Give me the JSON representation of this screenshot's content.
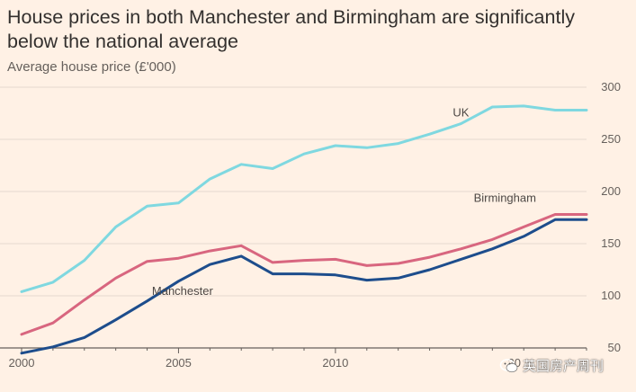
{
  "chart_data": {
    "type": "line",
    "title": "House prices in both Manchester and Birmingham are significantly below the national average",
    "subtitle": "Average house price (£'000)",
    "xlabel": "",
    "ylabel": "Average house price (£'000)",
    "xlim": [
      2000,
      2018
    ],
    "ylim": [
      50,
      300
    ],
    "x_ticks": [
      2000,
      2005,
      2010
    ],
    "x_tick_labels": [
      "2000",
      "2005",
      "2010"
    ],
    "y_ticks": [
      50,
      100,
      150,
      200,
      250,
      300
    ],
    "y_tick_labels": [
      "50",
      "100",
      "150",
      "200",
      "250",
      "300"
    ],
    "partial_tick_label": "20",
    "x": [
      2000,
      2001,
      2002,
      2003,
      2004,
      2005,
      2006,
      2007,
      2008,
      2009,
      2010,
      2011,
      2012,
      2013,
      2014,
      2015,
      2016,
      2017,
      2018
    ],
    "series": [
      {
        "name": "UK",
        "color": "#7FD8E0",
        "values": [
          104,
          113,
          134,
          166,
          186,
          189,
          212,
          226,
          222,
          236,
          244,
          242,
          246,
          255,
          265,
          281,
          282,
          278,
          278
        ]
      },
      {
        "name": "Birmingham",
        "color": "#D8667F",
        "values": [
          63,
          74,
          96,
          117,
          133,
          136,
          143,
          148,
          132,
          134,
          135,
          129,
          131,
          137,
          145,
          154,
          166,
          178,
          178
        ]
      },
      {
        "name": "Manchester",
        "color": "#1D4D8C",
        "values": [
          45,
          51,
          60,
          77,
          95,
          114,
          130,
          138,
          121,
          121,
          120,
          115,
          117,
          125,
          135,
          145,
          157,
          173,
          173
        ]
      }
    ],
    "grid": true,
    "legend": "inline labels"
  },
  "watermark": {
    "text": "英国房产周刊",
    "icon": "wechat-icon"
  }
}
